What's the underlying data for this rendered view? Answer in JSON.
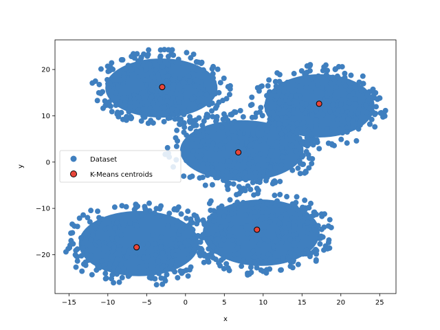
{
  "chart_data": {
    "type": "scatter",
    "title": "",
    "xlabel": "x",
    "ylabel": "y",
    "xlim": [
      -16.8,
      27.1
    ],
    "ylim": [
      -28.4,
      26.4
    ],
    "xticks": [
      -15,
      -10,
      -5,
      0,
      5,
      10,
      15,
      20,
      25
    ],
    "yticks": [
      -20,
      -10,
      0,
      10,
      20
    ],
    "tick_labels_x": [
      "−15",
      "−10",
      "−5",
      "0",
      "5",
      "10",
      "15",
      "20",
      "25"
    ],
    "tick_labels_y": [
      "−20",
      "−10",
      "0",
      "10",
      "20"
    ],
    "grid": false,
    "legend_position": "center-left",
    "series": [
      {
        "name": "Dataset",
        "color": "#3f7fbf",
        "clusters": [
          {
            "center": [
              -3.0,
              16.2
            ],
            "x_range": [
              -11.5,
              5.3
            ],
            "y_range": [
              8.2,
              23.8
            ]
          },
          {
            "center": [
              17.2,
              12.6
            ],
            "x_range": [
              9.0,
              25.5
            ],
            "y_range": [
              3.8,
              20.5
            ]
          },
          {
            "center": [
              6.8,
              2.1
            ],
            "x_range": [
              -2.0,
              16.5
            ],
            "y_range": [
              -5.5,
              10.5
            ]
          },
          {
            "center": [
              9.2,
              -14.6
            ],
            "x_range": [
              1.0,
              18.5
            ],
            "y_range": [
              -24.0,
              -6.5
            ]
          },
          {
            "center": [
              -6.3,
              -18.4
            ],
            "x_range": [
              -15.0,
              3.0
            ],
            "y_range": [
              -26.2,
              -9.0
            ]
          }
        ]
      },
      {
        "name": "K-Means centroids",
        "color": "#e8463a",
        "points": [
          {
            "x": -3.0,
            "y": 16.2
          },
          {
            "x": 17.2,
            "y": 12.6
          },
          {
            "x": 6.8,
            "y": 2.1
          },
          {
            "x": 9.2,
            "y": -14.6
          },
          {
            "x": -6.3,
            "y": -18.4
          }
        ]
      }
    ]
  }
}
